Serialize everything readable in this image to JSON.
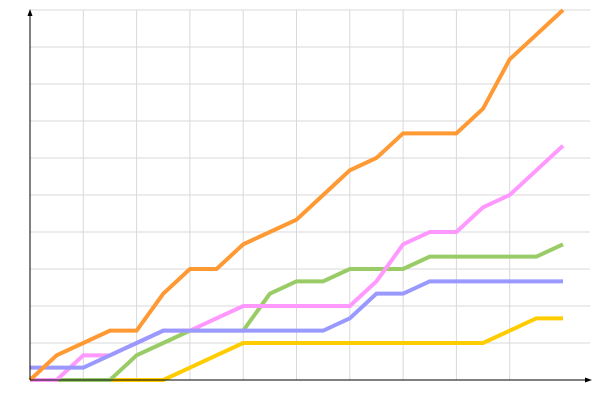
{
  "chart_data": {
    "type": "line",
    "title": "",
    "xlabel": "",
    "ylabel": "",
    "xlim": [
      0,
      20
    ],
    "ylim": [
      0,
      30
    ],
    "x_grid_step": 2,
    "y_grid_step": 3,
    "grid": true,
    "tick_labels": false,
    "legend": "none",
    "x": [
      0,
      1,
      2,
      3,
      4,
      5,
      6,
      7,
      8,
      9,
      10,
      11,
      12,
      13,
      14,
      15,
      16,
      17,
      18,
      19,
      20
    ],
    "series": [
      {
        "color": "#ffcc00",
        "values": [
          0,
          0,
          0,
          0,
          0,
          0,
          1,
          2,
          3,
          3,
          3,
          3,
          3,
          3,
          3,
          3,
          3,
          3,
          4,
          5,
          5
        ]
      },
      {
        "color": "#99cc66",
        "values": [
          0,
          0,
          0,
          0,
          2,
          3,
          4,
          4,
          4,
          7,
          8,
          8,
          9,
          9,
          9,
          10,
          10,
          10,
          10,
          10,
          11
        ]
      },
      {
        "color": "#ff99ff",
        "values": [
          0,
          0,
          2,
          2,
          3,
          4,
          4,
          5,
          6,
          6,
          6,
          6,
          6,
          8,
          11,
          12,
          12,
          14,
          15,
          17,
          19
        ]
      },
      {
        "color": "#9999ff",
        "values": [
          1,
          1,
          1,
          2,
          3,
          4,
          4,
          4,
          4,
          4,
          4,
          4,
          5,
          7,
          7,
          8,
          8,
          8,
          8,
          8,
          8
        ]
      },
      {
        "color": "#ff9933",
        "values": [
          0,
          2,
          3,
          4,
          4,
          7,
          9,
          9,
          11,
          12,
          13,
          15,
          17,
          18,
          20,
          20,
          20,
          22,
          26,
          28,
          30
        ]
      }
    ],
    "colors": {
      "grid": "#d9d9d9",
      "axis": "#000000"
    }
  }
}
